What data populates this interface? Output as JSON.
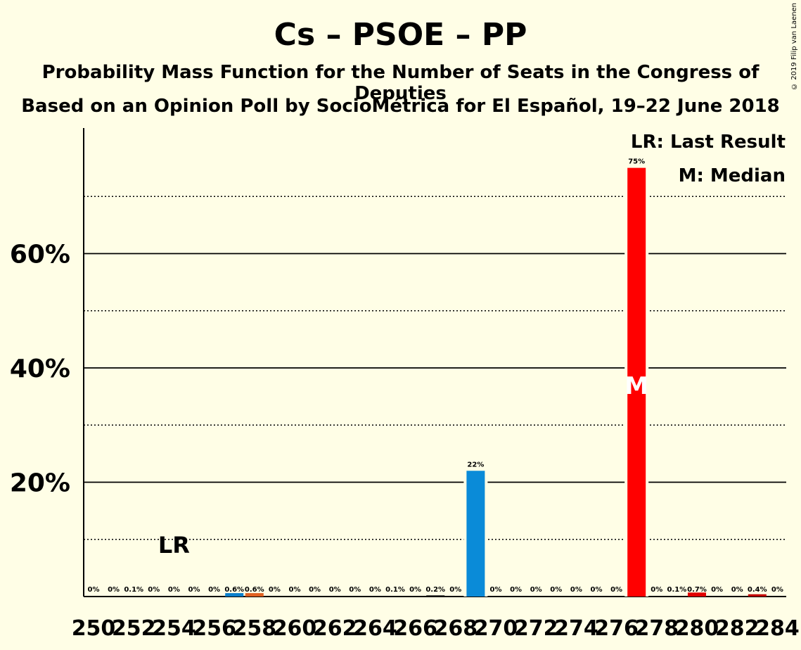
{
  "title": "Cs – PSOE – PP",
  "subtitle": "Probability Mass Function for the Number of Seats in the Congress of Deputies",
  "subtitle2": "Based on an Opinion Poll by SocioMétrica for El Español, 19–22 June 2018",
  "copyright": "© 2019 Filip van Laenen",
  "legend": {
    "last_result": "LR: Last Result",
    "median": "M: Median"
  },
  "chart_data": {
    "type": "bar",
    "x": [
      250,
      251,
      252,
      253,
      254,
      255,
      256,
      257,
      258,
      259,
      260,
      261,
      262,
      263,
      264,
      265,
      266,
      267,
      268,
      269,
      270,
      271,
      272,
      273,
      274,
      275,
      276,
      277,
      278,
      279,
      280,
      281,
      282,
      283,
      284
    ],
    "values": [
      0,
      0,
      0.1,
      0,
      0,
      0,
      0,
      0.6,
      0.6,
      0,
      0,
      0,
      0,
      0,
      0,
      0.1,
      0,
      0.2,
      0,
      22,
      0,
      0,
      0,
      0,
      0,
      0,
      0,
      75,
      0,
      0.1,
      0.7,
      0,
      0,
      0.4,
      0
    ],
    "labels": [
      "0%",
      "0%",
      "0.1%",
      "0%",
      "0%",
      "0%",
      "0%",
      "0.6%",
      "0.6%",
      "0%",
      "0%",
      "0%",
      "0%",
      "0%",
      "0%",
      "0.1%",
      "0%",
      "0.2%",
      "0%",
      "22%",
      "0%",
      "0%",
      "0%",
      "0%",
      "0%",
      "0%",
      "0%",
      "75%",
      "0%",
      "0.1%",
      "0.7%",
      "0%",
      "0%",
      "0.4%",
      "0%"
    ],
    "bar_colors": {
      "257": "#0A7FCB",
      "258": "#E06020",
      "269": "#0A8BD8",
      "277": "#FF0000",
      "280": "#E00000",
      "283": "#C00000"
    },
    "x_ticks": [
      "250",
      "252",
      "254",
      "256",
      "258",
      "260",
      "262",
      "264",
      "266",
      "268",
      "270",
      "272",
      "274",
      "276",
      "278",
      "280",
      "282",
      "284"
    ],
    "y_ticks": [
      "20%",
      "40%",
      "60%"
    ],
    "ylim": [
      0,
      80
    ],
    "last_result_seat": 254,
    "last_result_label": "LR",
    "median_seat": 277,
    "median_label": "M",
    "grid": "solid at 20% steps, dotted at 10% steps"
  }
}
